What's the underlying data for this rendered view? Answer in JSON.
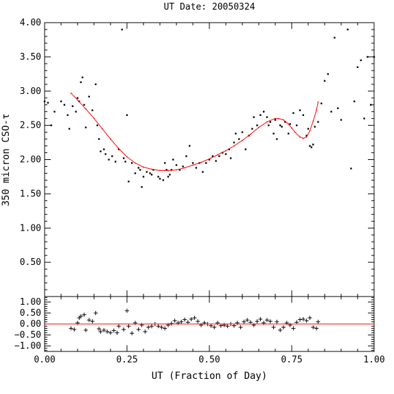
{
  "chart_data": [
    {
      "type": "scatter",
      "title": "UT Date: 20050324",
      "ylabel": "350 micron CSO-τ",
      "xlabel": "",
      "xlim": [
        0,
        1
      ],
      "ylim": [
        0,
        4
      ],
      "yticks": [
        "0.50",
        "1.00",
        "1.50",
        "2.00",
        "2.50",
        "3.00",
        "3.50",
        "4.00"
      ],
      "ytick_values": [
        0.5,
        1.0,
        1.5,
        2.0,
        2.5,
        3.0,
        3.5,
        4.0
      ],
      "grid": false,
      "series": [
        {
          "kind": "points",
          "color": "#000000",
          "x": [
            0.0,
            0.01,
            0.02,
            0.03,
            0.05,
            0.06,
            0.07,
            0.075,
            0.085,
            0.095,
            0.1,
            0.105,
            0.11,
            0.115,
            0.12,
            0.125,
            0.135,
            0.145,
            0.155,
            0.16,
            0.165,
            0.17,
            0.18,
            0.185,
            0.195,
            0.205,
            0.215,
            0.225,
            0.235,
            0.24,
            0.245,
            0.25,
            0.255,
            0.265,
            0.275,
            0.285,
            0.29,
            0.295,
            0.3,
            0.31,
            0.32,
            0.325,
            0.33,
            0.345,
            0.35,
            0.36,
            0.365,
            0.37,
            0.375,
            0.38,
            0.385,
            0.39,
            0.4,
            0.41,
            0.42,
            0.43,
            0.44,
            0.45,
            0.46,
            0.47,
            0.48,
            0.49,
            0.5,
            0.51,
            0.52,
            0.53,
            0.54,
            0.55,
            0.56,
            0.565,
            0.575,
            0.58,
            0.59,
            0.6,
            0.61,
            0.62,
            0.63,
            0.635,
            0.645,
            0.655,
            0.665,
            0.675,
            0.68,
            0.685,
            0.695,
            0.7,
            0.705,
            0.715,
            0.72,
            0.73,
            0.74,
            0.745,
            0.755,
            0.765,
            0.775,
            0.785,
            0.795,
            0.8,
            0.805,
            0.81,
            0.815,
            0.82,
            0.83,
            0.84,
            0.85,
            0.86,
            0.87,
            0.88,
            0.89,
            0.9,
            0.92,
            0.93,
            0.94,
            0.95,
            0.96,
            0.97,
            0.98,
            0.99,
            1.0
          ],
          "values": [
            2.85,
            2.83,
            2.5,
            2.7,
            2.85,
            2.8,
            2.65,
            2.45,
            2.78,
            2.7,
            2.9,
            2.85,
            3.13,
            3.2,
            2.8,
            2.47,
            2.92,
            2.72,
            3.1,
            2.5,
            2.3,
            2.12,
            2.15,
            2.08,
            2.0,
            2.05,
            1.97,
            2.15,
            3.9,
            2.02,
            1.97,
            2.65,
            1.68,
            1.95,
            1.8,
            1.88,
            1.85,
            1.6,
            1.75,
            1.82,
            1.8,
            1.78,
            1.85,
            1.75,
            1.72,
            1.7,
            1.95,
            1.85,
            1.75,
            1.78,
            1.85,
            2.0,
            1.92,
            1.85,
            1.9,
            2.05,
            2.2,
            1.95,
            1.88,
            1.95,
            1.82,
            1.95,
            2.0,
            2.05,
            1.98,
            2.05,
            2.1,
            2.08,
            2.15,
            2.02,
            2.25,
            2.38,
            2.3,
            2.4,
            2.15,
            2.35,
            2.45,
            2.62,
            2.5,
            2.65,
            2.7,
            2.62,
            2.5,
            2.55,
            2.38,
            2.58,
            2.3,
            2.5,
            2.48,
            2.55,
            2.38,
            2.52,
            2.68,
            2.5,
            2.72,
            2.65,
            2.35,
            2.45,
            2.2,
            2.18,
            2.22,
            2.48,
            2.55,
            2.82,
            3.15,
            3.25,
            2.7,
            3.78,
            2.75,
            2.58,
            3.9,
            1.87,
            2.85,
            3.35,
            3.45,
            2.6,
            3.5,
            2.8,
            3.5
          ]
        },
        {
          "kind": "line",
          "color": "#ff0000",
          "x": [
            0.08,
            0.1,
            0.125,
            0.15,
            0.175,
            0.2,
            0.225,
            0.25,
            0.275,
            0.3,
            0.325,
            0.35,
            0.375,
            0.4,
            0.425,
            0.45,
            0.475,
            0.5,
            0.525,
            0.55,
            0.575,
            0.6,
            0.625,
            0.65,
            0.675,
            0.7,
            0.71,
            0.725,
            0.74,
            0.75,
            0.76,
            0.775,
            0.785,
            0.795,
            0.805,
            0.815,
            0.825,
            0.83
          ],
          "values": [
            2.97,
            2.87,
            2.74,
            2.6,
            2.45,
            2.3,
            2.16,
            2.04,
            1.95,
            1.89,
            1.86,
            1.84,
            1.84,
            1.85,
            1.88,
            1.92,
            1.96,
            2.01,
            2.07,
            2.13,
            2.2,
            2.28,
            2.37,
            2.47,
            2.55,
            2.6,
            2.6,
            2.58,
            2.52,
            2.46,
            2.4,
            2.33,
            2.31,
            2.33,
            2.42,
            2.56,
            2.72,
            2.84
          ]
        }
      ]
    },
    {
      "type": "scatter",
      "xlabel": "UT (Fraction of Day)",
      "ylabel": "",
      "xlim": [
        0,
        1
      ],
      "ylim": [
        -1.25,
        1.25
      ],
      "xticks": [
        "0.00",
        "0.25",
        "0.50",
        "0.75",
        "1.00"
      ],
      "xtick_values": [
        0,
        0.25,
        0.5,
        0.75,
        1.0
      ],
      "yticks": [
        "1.00",
        "0.50",
        "0.00",
        "−0.50",
        "−1.00"
      ],
      "ytick_values": [
        1.0,
        0.5,
        0.0,
        -0.5,
        -1.0
      ],
      "reference_line": 0,
      "grid": false,
      "series": [
        {
          "kind": "crosses",
          "color": "#000000",
          "x": [
            0.08,
            0.09,
            0.1,
            0.105,
            0.11,
            0.12,
            0.125,
            0.135,
            0.145,
            0.155,
            0.165,
            0.17,
            0.18,
            0.19,
            0.2,
            0.21,
            0.22,
            0.225,
            0.24,
            0.25,
            0.255,
            0.265,
            0.275,
            0.285,
            0.295,
            0.305,
            0.315,
            0.325,
            0.335,
            0.345,
            0.355,
            0.365,
            0.375,
            0.385,
            0.395,
            0.405,
            0.415,
            0.425,
            0.435,
            0.445,
            0.455,
            0.465,
            0.475,
            0.485,
            0.495,
            0.505,
            0.515,
            0.525,
            0.535,
            0.545,
            0.555,
            0.565,
            0.575,
            0.585,
            0.595,
            0.605,
            0.615,
            0.625,
            0.635,
            0.645,
            0.655,
            0.665,
            0.675,
            0.685,
            0.695,
            0.705,
            0.715,
            0.725,
            0.735,
            0.745,
            0.755,
            0.765,
            0.775,
            0.785,
            0.795,
            0.805,
            0.815,
            0.825,
            0.83
          ],
          "values": [
            -0.2,
            -0.25,
            0.05,
            0.28,
            0.35,
            0.42,
            -0.28,
            0.18,
            0.12,
            0.5,
            -0.22,
            -0.35,
            -0.28,
            -0.35,
            -0.4,
            -0.3,
            -0.4,
            -0.1,
            -0.25,
            0.6,
            -0.1,
            -0.42,
            0.05,
            -0.25,
            -0.05,
            -0.35,
            -0.15,
            -0.1,
            0.0,
            -0.1,
            -0.15,
            -0.2,
            -0.05,
            0.02,
            0.15,
            0.05,
            0.1,
            0.2,
            0.08,
            0.22,
            0.28,
            0.12,
            -0.05,
            0.05,
            0.0,
            -0.08,
            -0.15,
            0.05,
            -0.08,
            -0.05,
            -0.1,
            0.0,
            -0.08,
            0.05,
            -0.15,
            0.1,
            0.18,
            0.08,
            -0.05,
            0.12,
            0.22,
            0.05,
            0.18,
            0.12,
            -0.15,
            0.1,
            -0.28,
            -0.15,
            0.05,
            -0.05,
            -0.2,
            0.08,
            0.2,
            0.22,
            0.15,
            0.28,
            -0.15,
            -0.2,
            0.1
          ]
        },
        {
          "kind": "line",
          "color": "#ff0000",
          "x": [
            0,
            1
          ],
          "values": [
            0,
            0
          ]
        }
      ]
    }
  ]
}
